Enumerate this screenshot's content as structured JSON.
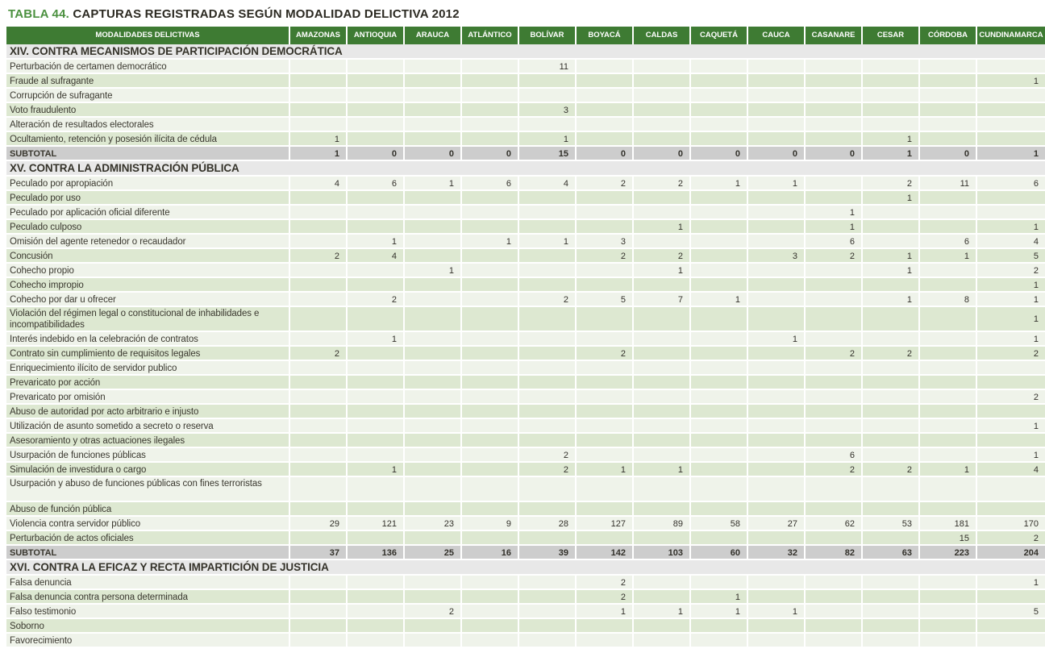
{
  "title": {
    "prefix": "TABLA 44.",
    "main": "CAPTURAS REGISTRADAS SEGÚN MODALIDAD DELICTIVA 2012"
  },
  "colors": {
    "header_green": "#3e7b33",
    "title_green": "#4c9140",
    "row_light": "#eff3ea",
    "row_green": "#dde8d1",
    "subtotal_gray": "#cdcdcd",
    "section_gray": "#e8e8e8"
  },
  "table": {
    "label_header": "MODALIDADES DELICTIVAS",
    "subtotal_label": "SUBTOTAL",
    "columns": [
      "AMAZONAS",
      "ANTIOQUIA",
      "ARAUCA",
      "ATLÁNTICO",
      "BOLÍVAR",
      "BOYACÁ",
      "CALDAS",
      "CAQUETÁ",
      "CAUCA",
      "CASANARE",
      "CESAR",
      "CÓRDOBA",
      "CUNDINAMARCA"
    ],
    "sections": [
      {
        "title": "XIV. CONTRA MECANISMOS DE PARTICIPACIÓN DEMOCRÁTICA",
        "rows": [
          {
            "label": "Perturbación de certamen democrático",
            "values": [
              "",
              "",
              "",
              "",
              "11",
              "",
              "",
              "",
              "",
              "",
              "",
              "",
              ""
            ]
          },
          {
            "label": "Fraude al sufragante",
            "values": [
              "",
              "",
              "",
              "",
              "",
              "",
              "",
              "",
              "",
              "",
              "",
              "",
              "1"
            ]
          },
          {
            "label": "Corrupción de sufragante",
            "values": [
              "",
              "",
              "",
              "",
              "",
              "",
              "",
              "",
              "",
              "",
              "",
              "",
              ""
            ]
          },
          {
            "label": "Voto fraudulento",
            "values": [
              "",
              "",
              "",
              "",
              "3",
              "",
              "",
              "",
              "",
              "",
              "",
              "",
              ""
            ]
          },
          {
            "label": "Alteración de resultados electorales",
            "values": [
              "",
              "",
              "",
              "",
              "",
              "",
              "",
              "",
              "",
              "",
              "",
              "",
              ""
            ]
          },
          {
            "label": "Ocultamiento, retención y posesión ilícita  de cédula",
            "values": [
              "1",
              "",
              "",
              "",
              "1",
              "",
              "",
              "",
              "",
              "",
              "1",
              "",
              ""
            ]
          }
        ],
        "subtotal": [
          "1",
          "0",
          "0",
          "0",
          "15",
          "0",
          "0",
          "0",
          "0",
          "0",
          "1",
          "0",
          "1"
        ]
      },
      {
        "title": "XV. CONTRA LA ADMINISTRACIÓN PÚBLICA",
        "rows": [
          {
            "label": "Peculado por apropiación",
            "values": [
              "4",
              "6",
              "1",
              "6",
              "4",
              "2",
              "2",
              "1",
              "1",
              "",
              "2",
              "11",
              "6"
            ]
          },
          {
            "label": "Peculado por uso",
            "values": [
              "",
              "",
              "",
              "",
              "",
              "",
              "",
              "",
              "",
              "",
              "1",
              "",
              ""
            ]
          },
          {
            "label": "Peculado por aplicación oficial diferente",
            "values": [
              "",
              "",
              "",
              "",
              "",
              "",
              "",
              "",
              "",
              "1",
              "",
              "",
              ""
            ]
          },
          {
            "label": "Peculado culposo",
            "values": [
              "",
              "",
              "",
              "",
              "",
              "",
              "1",
              "",
              "",
              "1",
              "",
              "",
              "1"
            ]
          },
          {
            "label": "Omisión del agente retenedor o recaudador",
            "values": [
              "",
              "1",
              "",
              "1",
              "1",
              "3",
              "",
              "",
              "",
              "6",
              "",
              "6",
              "4"
            ]
          },
          {
            "label": "Concusión",
            "values": [
              "2",
              "4",
              "",
              "",
              "",
              "2",
              "2",
              "",
              "3",
              "2",
              "1",
              "1",
              "5"
            ]
          },
          {
            "label": "Cohecho propio",
            "values": [
              "",
              "",
              "1",
              "",
              "",
              "",
              "1",
              "",
              "",
              "",
              "1",
              "",
              "2"
            ]
          },
          {
            "label": "Cohecho impropio",
            "values": [
              "",
              "",
              "",
              "",
              "",
              "",
              "",
              "",
              "",
              "",
              "",
              "",
              "1"
            ]
          },
          {
            "label": "Cohecho por dar u ofrecer",
            "values": [
              "",
              "2",
              "",
              "",
              "2",
              "5",
              "7",
              "1",
              "",
              "",
              "1",
              "8",
              "1"
            ]
          },
          {
            "label": "Violación del régimen legal o constitucional de inhabilidades e incompatibilidades",
            "values": [
              "",
              "",
              "",
              "",
              "",
              "",
              "",
              "",
              "",
              "",
              "",
              "",
              "1"
            ],
            "tall": true
          },
          {
            "label": "Interés indebido en la celebración de contratos",
            "values": [
              "",
              "1",
              "",
              "",
              "",
              "",
              "",
              "",
              "1",
              "",
              "",
              "",
              "1"
            ]
          },
          {
            "label": "Contrato sin cumplimiento de requisitos legales",
            "values": [
              "2",
              "",
              "",
              "",
              "",
              "2",
              "",
              "",
              "",
              "2",
              "2",
              "",
              "2"
            ]
          },
          {
            "label": "Enriquecimiento ilícito de servidor publico",
            "values": [
              "",
              "",
              "",
              "",
              "",
              "",
              "",
              "",
              "",
              "",
              "",
              "",
              ""
            ]
          },
          {
            "label": "Prevaricato por acción",
            "values": [
              "",
              "",
              "",
              "",
              "",
              "",
              "",
              "",
              "",
              "",
              "",
              "",
              ""
            ]
          },
          {
            "label": "Prevaricato por omisión",
            "values": [
              "",
              "",
              "",
              "",
              "",
              "",
              "",
              "",
              "",
              "",
              "",
              "",
              "2"
            ]
          },
          {
            "label": "Abuso de autoridad por acto arbitrario e injusto",
            "values": [
              "",
              "",
              "",
              "",
              "",
              "",
              "",
              "",
              "",
              "",
              "",
              "",
              ""
            ]
          },
          {
            "label": "Utilización de asunto sometido a secreto o reserva",
            "values": [
              "",
              "",
              "",
              "",
              "",
              "",
              "",
              "",
              "",
              "",
              "",
              "",
              "1"
            ]
          },
          {
            "label": "Asesoramiento y otras actuaciones ilegales",
            "values": [
              "",
              "",
              "",
              "",
              "",
              "",
              "",
              "",
              "",
              "",
              "",
              "",
              ""
            ]
          },
          {
            "label": "Usurpación de funciones públicas",
            "values": [
              "",
              "",
              "",
              "",
              "2",
              "",
              "",
              "",
              "",
              "6",
              "",
              "",
              "1"
            ]
          },
          {
            "label": "Simulación de investidura o cargo",
            "values": [
              "",
              "1",
              "",
              "",
              "2",
              "1",
              "1",
              "",
              "",
              "2",
              "2",
              "1",
              "4"
            ]
          },
          {
            "label": "Usurpación y abuso de funciones públicas con fines terroristas",
            "values": [
              "",
              "",
              "",
              "",
              "",
              "",
              "",
              "",
              "",
              "",
              "",
              "",
              ""
            ],
            "tall": true
          },
          {
            "label": "Abuso de función pública",
            "values": [
              "",
              "",
              "",
              "",
              "",
              "",
              "",
              "",
              "",
              "",
              "",
              "",
              ""
            ]
          },
          {
            "label": "Violencia contra servidor público",
            "values": [
              "29",
              "121",
              "23",
              "9",
              "28",
              "127",
              "89",
              "58",
              "27",
              "62",
              "53",
              "181",
              "170"
            ]
          },
          {
            "label": "Perturbación de actos oficiales",
            "values": [
              "",
              "",
              "",
              "",
              "",
              "",
              "",
              "",
              "",
              "",
              "",
              "15",
              "2"
            ]
          }
        ],
        "subtotal": [
          "37",
          "136",
          "25",
          "16",
          "39",
          "142",
          "103",
          "60",
          "32",
          "82",
          "63",
          "223",
          "204"
        ]
      },
      {
        "title": "XVI. CONTRA LA EFICAZ Y RECTA IMPARTICIÓN DE JUSTICIA",
        "rows": [
          {
            "label": "Falsa denuncia",
            "values": [
              "",
              "",
              "",
              "",
              "",
              "2",
              "",
              "",
              "",
              "",
              "",
              "",
              "1"
            ]
          },
          {
            "label": "Falsa denuncia contra persona determinada",
            "values": [
              "",
              "",
              "",
              "",
              "",
              "2",
              "",
              "1",
              "",
              "",
              "",
              "",
              ""
            ]
          },
          {
            "label": "Falso testimonio",
            "values": [
              "",
              "",
              "2",
              "",
              "",
              "1",
              "1",
              "1",
              "1",
              "",
              "",
              "",
              "5"
            ]
          },
          {
            "label": "Soborno",
            "values": [
              "",
              "",
              "",
              "",
              "",
              "",
              "",
              "",
              "",
              "",
              "",
              "",
              ""
            ]
          },
          {
            "label": "Favorecimiento",
            "values": [
              "",
              "",
              "",
              "",
              "",
              "",
              "",
              "",
              "",
              "",
              "",
              "",
              ""
            ]
          }
        ],
        "subtotal": null
      }
    ]
  }
}
